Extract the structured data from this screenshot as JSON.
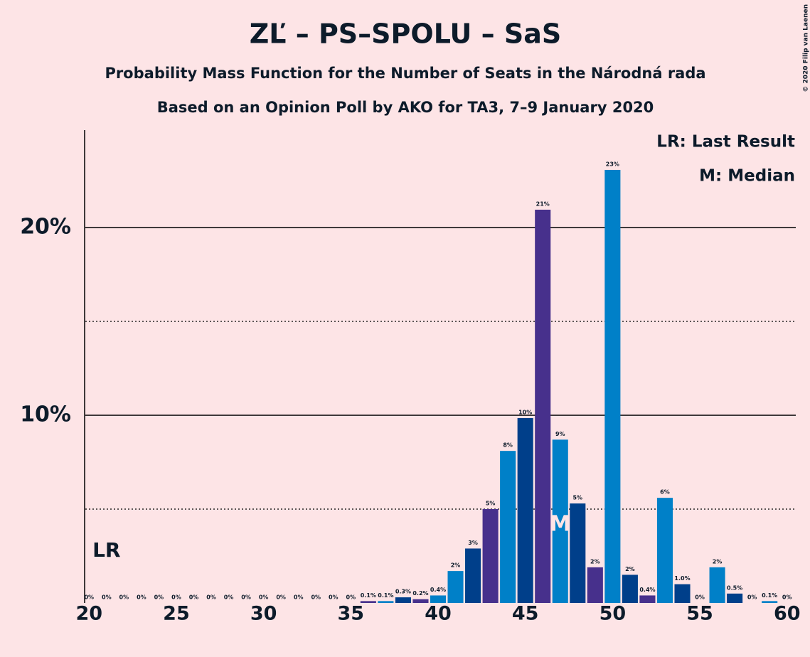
{
  "chart_data": {
    "type": "bar",
    "title": "ZĽ – PS–SPOLU – SaS",
    "subtitle": "Probability Mass Function for the Number of Seats in the Národná rada",
    "subtitle2": "Based on an Opinion Poll by AKO for TA3, 7–9 January 2020",
    "copyright": "© 2020 Filip van Laenen",
    "legend_items": [
      "LR: Last Result",
      "M: Median"
    ],
    "x": [
      20,
      21,
      22,
      23,
      24,
      25,
      26,
      27,
      28,
      29,
      30,
      31,
      32,
      33,
      34,
      35,
      36,
      37,
      38,
      39,
      40,
      41,
      42,
      43,
      44,
      45,
      46,
      47,
      48,
      49,
      50,
      51,
      52,
      53,
      54,
      55,
      56,
      57,
      58,
      59,
      60
    ],
    "values": [
      0,
      0,
      0,
      0,
      0,
      0,
      0,
      0,
      0,
      0,
      0,
      0,
      0,
      0,
      0,
      0,
      0.1,
      0.1,
      0.3,
      0.2,
      0.4,
      1.7,
      2.9,
      5.0,
      8.1,
      9.85,
      20.95,
      8.7,
      5.3,
      1.9,
      23.07,
      1.5,
      0.4,
      5.6,
      1.0,
      0,
      1.9,
      0.5,
      0,
      0.1,
      0
    ],
    "value_labels": [
      "0%",
      "0%",
      "0%",
      "0%",
      "0%",
      "0%",
      "0%",
      "0%",
      "0%",
      "0%",
      "0%",
      "0%",
      "0%",
      "0%",
      "0%",
      "0%",
      "0.1%",
      "0.1%",
      "0.3%",
      "0.2%",
      "0.4%",
      "2%",
      "3%",
      "5%",
      "8%",
      "10%",
      "21%",
      "9%",
      "5%",
      "2%",
      "23%",
      "2%",
      "0.4%",
      "6%",
      "1.0%",
      "0%",
      "2%",
      "0.5%",
      "0%",
      "0.1%",
      "0%"
    ],
    "colors": [
      "#003f8a",
      "#47308c",
      "#0080c8",
      "#003f8a",
      "#47308c",
      "#0080c8",
      "#003f8a",
      "#47308c",
      "#0080c8",
      "#003f8a",
      "#47308c",
      "#0080c8",
      "#003f8a",
      "#47308c",
      "#0080c8",
      "#003f8a",
      "#47308c",
      "#0080c8",
      "#003f8a",
      "#47308c",
      "#0080c8",
      "#0080c8",
      "#003f8a",
      "#47308c",
      "#0080c8",
      "#003f8a",
      "#47308c",
      "#0080c8",
      "#003f8a",
      "#47308c",
      "#0080c8",
      "#003f8a",
      "#47308c",
      "#0080c8",
      "#003f8a",
      "#47308c",
      "#0080c8",
      "#003f8a",
      "#47308c",
      "#0080c8",
      "#003f8a"
    ],
    "xlim": [
      19.5,
      60.5
    ],
    "xticks": [
      20,
      25,
      30,
      35,
      40,
      45,
      50,
      55,
      60
    ],
    "ylim": [
      0,
      25
    ],
    "yticks": [
      {
        "value": 10,
        "label": "10%"
      },
      {
        "value": 20,
        "label": "20%"
      }
    ],
    "minor_yticks": [
      5,
      15
    ],
    "grid": true,
    "last_result": 21,
    "last_result_label": "LR",
    "median": 47,
    "median_label": "M"
  }
}
